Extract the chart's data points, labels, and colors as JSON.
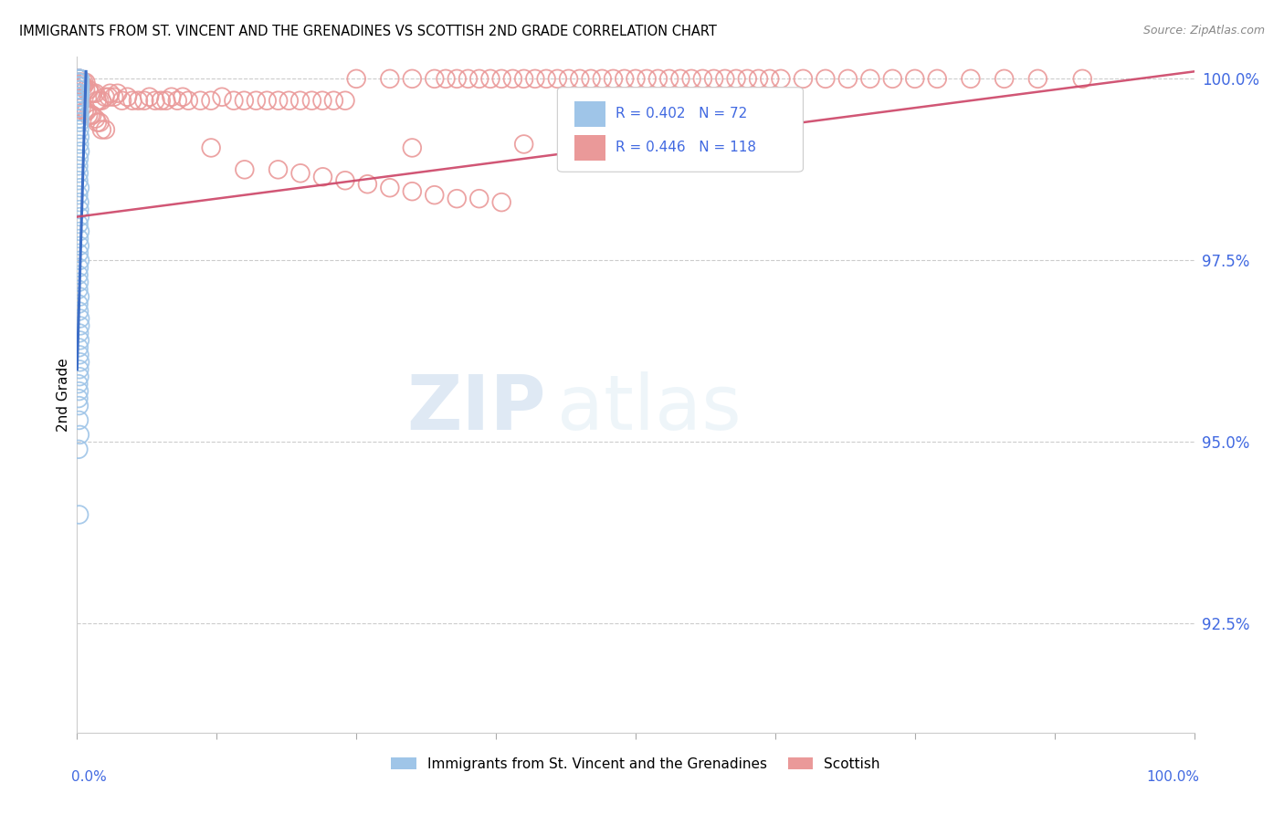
{
  "title": "IMMIGRANTS FROM ST. VINCENT AND THE GRENADINES VS SCOTTISH 2ND GRADE CORRELATION CHART",
  "source": "Source: ZipAtlas.com",
  "ylabel": "2nd Grade",
  "xlim": [
    0.0,
    1.0
  ],
  "ylim": [
    0.91,
    1.003
  ],
  "yticks": [
    0.925,
    0.95,
    0.975,
    1.0
  ],
  "ytick_labels": [
    "92.5%",
    "95.0%",
    "97.5%",
    "100.0%"
  ],
  "legend_label1": "Immigrants from St. Vincent and the Grenadines",
  "legend_label2": "Scottish",
  "color_blue": "#9fc5e8",
  "color_pink": "#ea9999",
  "color_blue_line": "#3c6dc6",
  "color_pink_line": "#cc4466",
  "color_tick_right": "#4169e1",
  "watermark_zip": "ZIP",
  "watermark_atlas": "atlas",
  "blue_x": [
    0.002,
    0.002,
    0.002,
    0.002,
    0.002,
    0.002,
    0.002,
    0.002,
    0.002,
    0.002,
    0.002,
    0.002,
    0.002,
    0.002,
    0.002,
    0.002,
    0.002,
    0.002,
    0.002,
    0.002,
    0.002,
    0.002,
    0.002,
    0.002,
    0.002,
    0.002,
    0.002,
    0.002,
    0.002,
    0.002,
    0.002,
    0.002,
    0.002,
    0.002,
    0.002,
    0.002,
    0.002,
    0.002,
    0.002,
    0.002,
    0.002,
    0.002,
    0.002,
    0.002,
    0.002,
    0.002,
    0.002,
    0.002,
    0.002,
    0.002,
    0.002,
    0.002,
    0.002,
    0.002,
    0.002,
    0.002,
    0.002,
    0.002,
    0.002,
    0.002,
    0.002,
    0.002,
    0.002,
    0.002,
    0.002,
    0.002,
    0.002,
    0.002,
    0.002,
    0.002,
    0.002,
    0.002
  ],
  "blue_y": [
    1.0,
    1.0,
    1.0,
    1.0,
    1.0,
    0.9995,
    0.9995,
    0.9995,
    0.9995,
    0.999,
    0.999,
    0.999,
    0.999,
    0.9985,
    0.9985,
    0.9985,
    0.998,
    0.998,
    0.998,
    0.9975,
    0.9975,
    0.997,
    0.997,
    0.9965,
    0.996,
    0.9955,
    0.995,
    0.9945,
    0.994,
    0.993,
    0.992,
    0.991,
    0.99,
    0.989,
    0.988,
    0.987,
    0.986,
    0.985,
    0.984,
    0.983,
    0.982,
    0.981,
    0.98,
    0.979,
    0.978,
    0.977,
    0.976,
    0.975,
    0.974,
    0.973,
    0.972,
    0.971,
    0.97,
    0.969,
    0.968,
    0.967,
    0.966,
    0.965,
    0.964,
    0.963,
    0.962,
    0.961,
    0.96,
    0.959,
    0.958,
    0.957,
    0.956,
    0.955,
    0.953,
    0.951,
    0.949,
    0.94
  ],
  "pink_x_cluster": [
    0.002,
    0.002,
    0.002,
    0.002,
    0.002,
    0.002,
    0.002,
    0.002,
    0.002,
    0.002,
    0.002,
    0.002,
    0.002,
    0.002,
    0.002,
    0.004,
    0.004,
    0.006,
    0.006,
    0.008,
    0.008,
    0.01,
    0.012,
    0.014,
    0.016,
    0.018,
    0.02,
    0.022,
    0.025,
    0.028,
    0.03,
    0.033,
    0.036,
    0.04,
    0.045,
    0.05,
    0.055,
    0.06,
    0.065,
    0.07,
    0.075,
    0.08,
    0.085,
    0.09,
    0.095,
    0.1,
    0.11,
    0.12,
    0.13,
    0.14,
    0.15,
    0.16,
    0.17,
    0.18,
    0.19,
    0.2,
    0.21,
    0.22,
    0.23,
    0.24,
    0.002,
    0.004,
    0.006,
    0.008,
    0.01,
    0.012,
    0.014,
    0.016,
    0.018,
    0.02,
    0.022,
    0.025
  ],
  "pink_y_cluster": [
    1.0,
    1.0,
    1.0,
    1.0,
    1.0,
    0.9995,
    0.9995,
    0.9995,
    0.9995,
    0.999,
    0.999,
    0.999,
    0.9985,
    0.9985,
    0.998,
    0.9995,
    0.999,
    0.9995,
    0.999,
    0.9995,
    0.9985,
    0.9985,
    0.998,
    0.998,
    0.998,
    0.997,
    0.997,
    0.997,
    0.9975,
    0.9975,
    0.998,
    0.9975,
    0.998,
    0.997,
    0.9975,
    0.997,
    0.997,
    0.997,
    0.9975,
    0.997,
    0.997,
    0.997,
    0.9975,
    0.997,
    0.9975,
    0.997,
    0.997,
    0.997,
    0.9975,
    0.997,
    0.997,
    0.997,
    0.997,
    0.997,
    0.997,
    0.997,
    0.997,
    0.997,
    0.997,
    0.997,
    0.996,
    0.996,
    0.9955,
    0.9955,
    0.995,
    0.995,
    0.995,
    0.9945,
    0.994,
    0.994,
    0.993,
    0.993
  ],
  "pink_x_high": [
    0.25,
    0.28,
    0.3,
    0.32,
    0.33,
    0.34,
    0.35,
    0.36,
    0.37,
    0.38,
    0.39,
    0.4,
    0.41,
    0.42,
    0.43,
    0.44,
    0.45,
    0.46,
    0.47,
    0.48,
    0.49,
    0.5,
    0.51,
    0.52,
    0.53,
    0.54,
    0.55,
    0.56,
    0.57,
    0.58,
    0.59,
    0.6,
    0.61,
    0.62,
    0.63,
    0.65,
    0.67,
    0.69,
    0.71,
    0.73,
    0.75,
    0.77,
    0.8,
    0.83,
    0.86,
    0.9
  ],
  "pink_y_high": [
    1.0,
    1.0,
    1.0,
    1.0,
    1.0,
    1.0,
    1.0,
    1.0,
    1.0,
    1.0,
    1.0,
    1.0,
    1.0,
    1.0,
    1.0,
    1.0,
    1.0,
    1.0,
    1.0,
    1.0,
    1.0,
    1.0,
    1.0,
    1.0,
    1.0,
    1.0,
    1.0,
    1.0,
    1.0,
    1.0,
    1.0,
    1.0,
    1.0,
    1.0,
    1.0,
    1.0,
    1.0,
    1.0,
    1.0,
    1.0,
    1.0,
    1.0,
    1.0,
    1.0,
    1.0,
    1.0
  ],
  "pink_x_outliers": [
    0.15,
    0.18,
    0.2,
    0.22,
    0.24,
    0.26,
    0.28,
    0.3,
    0.32,
    0.34,
    0.36,
    0.38,
    0.12,
    0.3,
    0.4,
    0.6
  ],
  "pink_y_outliers": [
    0.9875,
    0.9875,
    0.987,
    0.9865,
    0.986,
    0.9855,
    0.985,
    0.9845,
    0.984,
    0.9835,
    0.9835,
    0.983,
    0.9905,
    0.9905,
    0.991,
    0.9935
  ],
  "blue_trend_x": [
    0.0,
    0.008
  ],
  "blue_trend_y": [
    0.96,
    1.001
  ],
  "pink_trend_x": [
    0.0,
    1.0
  ],
  "pink_trend_y": [
    0.981,
    1.001
  ]
}
